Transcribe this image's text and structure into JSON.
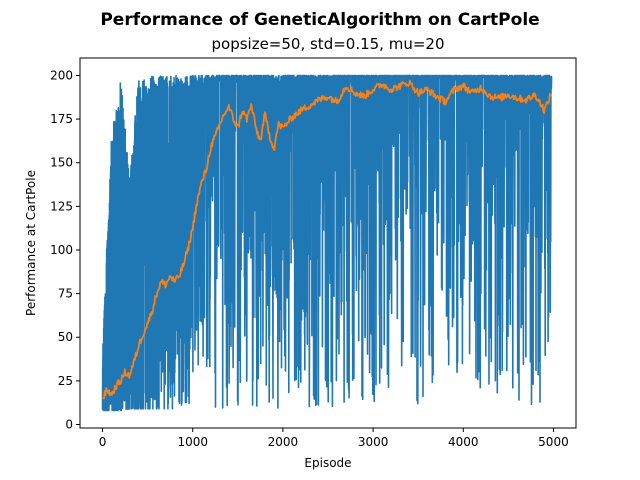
{
  "chart_data": {
    "type": "line",
    "title": "Performance of GeneticAlgorithm on CartPole",
    "subtitle": "popsize=50, std=0.15, mu=20",
    "xlabel": "Episode",
    "ylabel": "Performance at CartPole",
    "xlim": [
      -250,
      5250
    ],
    "ylim": [
      -2,
      210
    ],
    "xticks": [
      0,
      1000,
      2000,
      3000,
      4000,
      5000
    ],
    "yticks": [
      0,
      25,
      50,
      75,
      100,
      125,
      150,
      175,
      200
    ],
    "grid": false,
    "legend": "none",
    "colors": {
      "raw": "#1f77b4",
      "smoothed": "#ff7f0e"
    },
    "series": [
      {
        "key": "raw",
        "envelope_x": [
          0,
          100,
          200,
          300,
          400,
          500,
          700,
          900,
          1100,
          1300,
          1500,
          1700,
          1900,
          2100,
          2300,
          2500,
          2700,
          2900,
          3100,
          3300,
          3500,
          3700,
          3900,
          4100,
          4300,
          4500,
          4700,
          4900,
          4980
        ],
        "upper": [
          45,
          165,
          200,
          140,
          200,
          200,
          200,
          200,
          200,
          200,
          200,
          200,
          200,
          200,
          200,
          200,
          200,
          200,
          200,
          200,
          200,
          200,
          200,
          200,
          200,
          200,
          200,
          200,
          200
        ],
        "lower": [
          8,
          8,
          8,
          9,
          9,
          9,
          9,
          9,
          9,
          9,
          10,
          10,
          9,
          10,
          10,
          10,
          10,
          12,
          14,
          17,
          10,
          21,
          26,
          23,
          11,
          9,
          9,
          9,
          35
        ]
      },
      {
        "key": "smoothed",
        "x": [
          0,
          50,
          100,
          150,
          200,
          250,
          300,
          350,
          400,
          450,
          500,
          550,
          600,
          650,
          700,
          750,
          800,
          850,
          900,
          950,
          1000,
          1050,
          1100,
          1150,
          1200,
          1250,
          1300,
          1350,
          1400,
          1450,
          1500,
          1550,
          1600,
          1650,
          1700,
          1750,
          1800,
          1850,
          1900,
          1950,
          2000,
          2100,
          2200,
          2300,
          2400,
          2500,
          2600,
          2700,
          2800,
          2900,
          3000,
          3100,
          3200,
          3300,
          3400,
          3500,
          3600,
          3700,
          3800,
          3900,
          4000,
          4100,
          4200,
          4300,
          4400,
          4500,
          4600,
          4700,
          4800,
          4900,
          4980
        ],
        "y": [
          15,
          20,
          17,
          22,
          25,
          30,
          28,
          36,
          45,
          52,
          58,
          65,
          75,
          82,
          80,
          85,
          82,
          85,
          92,
          101,
          113,
          128,
          139,
          146,
          159,
          165,
          172,
          178,
          182,
          175,
          170,
          180,
          175,
          183,
          170,
          162,
          178,
          166,
          158,
          172,
          170,
          176,
          180,
          183,
          186,
          188,
          185,
          194,
          190,
          188,
          192,
          195,
          192,
          194,
          196,
          190,
          192,
          188,
          185,
          192,
          194,
          190,
          193,
          188,
          187,
          189,
          187,
          186,
          189,
          180,
          190
        ]
      }
    ]
  }
}
